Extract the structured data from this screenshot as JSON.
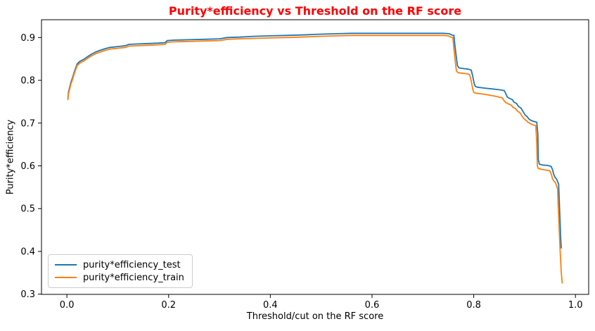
{
  "chart_data": {
    "type": "line",
    "title": "Purity*efficiency vs Threshold on the RF score",
    "title_color": "#ff0000",
    "xlabel": "Threshold/cut on the RF score",
    "ylabel": "Purity*efficiency",
    "xlim": [
      -0.05,
      1.026
    ],
    "ylim": [
      0.2995,
      0.9417
    ],
    "grid": false,
    "legend_position": "lower-left",
    "xticks": {
      "values": [
        0.0,
        0.2,
        0.4,
        0.6,
        0.8,
        1.0
      ],
      "labels": [
        "0.0",
        "0.2",
        "0.4",
        "0.6",
        "0.8",
        "1.0"
      ]
    },
    "yticks": {
      "values": [
        0.3,
        0.4,
        0.5,
        0.6,
        0.7,
        0.8,
        0.9
      ],
      "labels": [
        "0.3",
        "0.4",
        "0.5",
        "0.6",
        "0.7",
        "0.8",
        "0.9"
      ]
    },
    "series": [
      {
        "name": "purity*efficiency_test",
        "color": "#1f77b4",
        "points": [
          [
            0.002,
            0.758
          ],
          [
            0.003,
            0.772
          ],
          [
            0.005,
            0.782
          ],
          [
            0.008,
            0.796
          ],
          [
            0.011,
            0.806
          ],
          [
            0.014,
            0.818
          ],
          [
            0.017,
            0.828
          ],
          [
            0.02,
            0.838
          ],
          [
            0.024,
            0.843
          ],
          [
            0.028,
            0.846
          ],
          [
            0.033,
            0.849
          ],
          [
            0.04,
            0.855
          ],
          [
            0.048,
            0.861
          ],
          [
            0.056,
            0.866
          ],
          [
            0.065,
            0.87
          ],
          [
            0.075,
            0.874
          ],
          [
            0.085,
            0.877
          ],
          [
            0.1,
            0.879
          ],
          [
            0.115,
            0.881
          ],
          [
            0.122,
            0.884
          ],
          [
            0.14,
            0.885
          ],
          [
            0.16,
            0.886
          ],
          [
            0.18,
            0.887
          ],
          [
            0.193,
            0.888
          ],
          [
            0.197,
            0.893
          ],
          [
            0.21,
            0.894
          ],
          [
            0.24,
            0.895
          ],
          [
            0.27,
            0.896
          ],
          [
            0.3,
            0.897
          ],
          [
            0.315,
            0.9
          ],
          [
            0.34,
            0.901
          ],
          [
            0.37,
            0.903
          ],
          [
            0.4,
            0.904
          ],
          [
            0.43,
            0.905
          ],
          [
            0.46,
            0.906
          ],
          [
            0.5,
            0.908
          ],
          [
            0.53,
            0.909
          ],
          [
            0.56,
            0.91
          ],
          [
            0.6,
            0.91
          ],
          [
            0.65,
            0.91
          ],
          [
            0.7,
            0.91
          ],
          [
            0.74,
            0.91
          ],
          [
            0.752,
            0.909
          ],
          [
            0.757,
            0.906
          ],
          [
            0.761,
            0.905
          ],
          [
            0.763,
            0.882
          ],
          [
            0.766,
            0.852
          ],
          [
            0.768,
            0.834
          ],
          [
            0.771,
            0.829
          ],
          [
            0.776,
            0.828
          ],
          [
            0.79,
            0.826
          ],
          [
            0.795,
            0.824
          ],
          [
            0.798,
            0.81
          ],
          [
            0.801,
            0.792
          ],
          [
            0.803,
            0.786
          ],
          [
            0.807,
            0.784
          ],
          [
            0.82,
            0.782
          ],
          [
            0.835,
            0.78
          ],
          [
            0.85,
            0.778
          ],
          [
            0.86,
            0.776
          ],
          [
            0.863,
            0.769
          ],
          [
            0.866,
            0.761
          ],
          [
            0.87,
            0.758
          ],
          [
            0.876,
            0.755
          ],
          [
            0.879,
            0.749
          ],
          [
            0.884,
            0.746
          ],
          [
            0.888,
            0.739
          ],
          [
            0.893,
            0.735
          ],
          [
            0.897,
            0.727
          ],
          [
            0.901,
            0.719
          ],
          [
            0.905,
            0.715
          ],
          [
            0.909,
            0.709
          ],
          [
            0.913,
            0.706
          ],
          [
            0.918,
            0.704
          ],
          [
            0.924,
            0.702
          ],
          [
            0.926,
            0.675
          ],
          [
            0.927,
            0.615
          ],
          [
            0.929,
            0.604
          ],
          [
            0.935,
            0.602
          ],
          [
            0.945,
            0.601
          ],
          [
            0.952,
            0.599
          ],
          [
            0.955,
            0.591
          ],
          [
            0.957,
            0.581
          ],
          [
            0.96,
            0.573
          ],
          [
            0.963,
            0.569
          ],
          [
            0.965,
            0.563
          ],
          [
            0.967,
            0.557
          ],
          [
            0.968,
            0.522
          ],
          [
            0.97,
            0.462
          ],
          [
            0.971,
            0.432
          ],
          [
            0.972,
            0.408
          ]
        ]
      },
      {
        "name": "purity*efficiency_train",
        "color": "#ff7f0e",
        "points": [
          [
            0.002,
            0.755
          ],
          [
            0.003,
            0.768
          ],
          [
            0.005,
            0.778
          ],
          [
            0.008,
            0.792
          ],
          [
            0.011,
            0.802
          ],
          [
            0.014,
            0.814
          ],
          [
            0.017,
            0.824
          ],
          [
            0.02,
            0.834
          ],
          [
            0.024,
            0.839
          ],
          [
            0.028,
            0.842
          ],
          [
            0.033,
            0.845
          ],
          [
            0.04,
            0.851
          ],
          [
            0.048,
            0.857
          ],
          [
            0.056,
            0.862
          ],
          [
            0.065,
            0.866
          ],
          [
            0.075,
            0.87
          ],
          [
            0.085,
            0.873
          ],
          [
            0.1,
            0.875
          ],
          [
            0.115,
            0.877
          ],
          [
            0.122,
            0.88
          ],
          [
            0.14,
            0.881
          ],
          [
            0.16,
            0.882
          ],
          [
            0.18,
            0.883
          ],
          [
            0.193,
            0.884
          ],
          [
            0.197,
            0.889
          ],
          [
            0.21,
            0.89
          ],
          [
            0.24,
            0.891
          ],
          [
            0.27,
            0.892
          ],
          [
            0.3,
            0.893
          ],
          [
            0.315,
            0.896
          ],
          [
            0.34,
            0.897
          ],
          [
            0.37,
            0.898
          ],
          [
            0.4,
            0.899
          ],
          [
            0.43,
            0.9
          ],
          [
            0.46,
            0.901
          ],
          [
            0.5,
            0.903
          ],
          [
            0.53,
            0.904
          ],
          [
            0.56,
            0.905
          ],
          [
            0.6,
            0.905
          ],
          [
            0.65,
            0.905
          ],
          [
            0.7,
            0.905
          ],
          [
            0.74,
            0.905
          ],
          [
            0.75,
            0.904
          ],
          [
            0.755,
            0.901
          ],
          [
            0.759,
            0.9
          ],
          [
            0.761,
            0.874
          ],
          [
            0.764,
            0.84
          ],
          [
            0.766,
            0.822
          ],
          [
            0.769,
            0.818
          ],
          [
            0.774,
            0.817
          ],
          [
            0.788,
            0.815
          ],
          [
            0.792,
            0.813
          ],
          [
            0.795,
            0.799
          ],
          [
            0.798,
            0.78
          ],
          [
            0.8,
            0.772
          ],
          [
            0.804,
            0.77
          ],
          [
            0.818,
            0.768
          ],
          [
            0.832,
            0.765
          ],
          [
            0.846,
            0.762
          ],
          [
            0.856,
            0.759
          ],
          [
            0.86,
            0.752
          ],
          [
            0.863,
            0.748
          ],
          [
            0.868,
            0.745
          ],
          [
            0.874,
            0.742
          ],
          [
            0.877,
            0.737
          ],
          [
            0.882,
            0.734
          ],
          [
            0.886,
            0.728
          ],
          [
            0.891,
            0.724
          ],
          [
            0.895,
            0.716
          ],
          [
            0.899,
            0.71
          ],
          [
            0.903,
            0.706
          ],
          [
            0.907,
            0.702
          ],
          [
            0.911,
            0.699
          ],
          [
            0.916,
            0.696
          ],
          [
            0.922,
            0.694
          ],
          [
            0.924,
            0.655
          ],
          [
            0.925,
            0.6
          ],
          [
            0.927,
            0.594
          ],
          [
            0.933,
            0.592
          ],
          [
            0.943,
            0.59
          ],
          [
            0.95,
            0.588
          ],
          [
            0.953,
            0.579
          ],
          [
            0.955,
            0.569
          ],
          [
            0.958,
            0.564
          ],
          [
            0.961,
            0.56
          ],
          [
            0.963,
            0.553
          ],
          [
            0.965,
            0.546
          ],
          [
            0.966,
            0.512
          ],
          [
            0.968,
            0.452
          ],
          [
            0.97,
            0.4
          ],
          [
            0.972,
            0.352
          ],
          [
            0.974,
            0.326
          ]
        ]
      }
    ]
  }
}
